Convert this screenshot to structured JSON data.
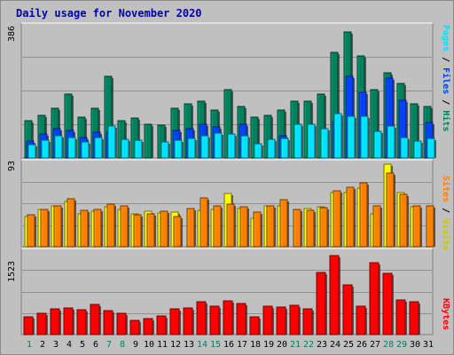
{
  "title": "Daily usage for November 2020",
  "colors": {
    "hits": "#00805c",
    "files": "#0040ff",
    "pages": "#00e0ff",
    "visits": "#ffff00",
    "sites": "#ff8000",
    "kbytes": "#ff0000",
    "weekday_label": "#006000",
    "weekend_label": "#00805c",
    "panel_bg": "#c0c0c0",
    "panel_border": "#808080"
  },
  "legend": {
    "top": {
      "pages": "Pages",
      "files": "Files",
      "hits": "Hits",
      "sep": " / "
    },
    "middle": {
      "sites": "Sites",
      "visits": "Visits",
      "sep": " / "
    },
    "bottom": {
      "kbytes": "KBytes"
    }
  },
  "chart_data": [
    {
      "type": "bar",
      "ymax_label": "386",
      "categories": [
        "1",
        "2",
        "3",
        "4",
        "5",
        "6",
        "7",
        "8",
        "9",
        "10",
        "11",
        "12",
        "13",
        "14",
        "15",
        "16",
        "17",
        "18",
        "19",
        "20",
        "21",
        "22",
        "23",
        "24",
        "25",
        "26",
        "27",
        "28",
        "29",
        "30",
        "31"
      ],
      "series": [
        {
          "name": "Hits",
          "values": [
            110,
            125,
            145,
            188,
            120,
            145,
            240,
            110,
            118,
            100,
            96,
            145,
            160,
            168,
            140,
            200,
            150,
            120,
            125,
            140,
            168,
            168,
            187,
            310,
            370,
            300,
            200,
            250,
            220,
            160,
            150
          ]
        },
        {
          "name": "Files",
          "values": [
            50,
            70,
            85,
            80,
            60,
            75,
            75,
            0,
            0,
            0,
            0,
            80,
            85,
            100,
            90,
            0,
            100,
            0,
            0,
            64,
            0,
            0,
            0,
            108,
            240,
            194,
            0,
            235,
            170,
            0,
            105
          ]
        },
        {
          "name": "Pages",
          "values": [
            40,
            53,
            66,
            60,
            48,
            60,
            93,
            56,
            53,
            0,
            46,
            53,
            58,
            65,
            73,
            70,
            65,
            42,
            55,
            58,
            98,
            98,
            86,
            130,
            122,
            123,
            78,
            95,
            60,
            50,
            58
          ]
        }
      ]
    },
    {
      "type": "bar",
      "ymax_label": "93",
      "categories": [
        "1",
        "2",
        "3",
        "4",
        "5",
        "6",
        "7",
        "8",
        "9",
        "10",
        "11",
        "12",
        "13",
        "14",
        "15",
        "16",
        "17",
        "18",
        "19",
        "20",
        "21",
        "22",
        "23",
        "24",
        "25",
        "26",
        "27",
        "28",
        "29",
        "30",
        "31"
      ],
      "series": [
        {
          "name": "Visits",
          "values": [
            34,
            42,
            46,
            50,
            37,
            40,
            45,
            42,
            37,
            40,
            38,
            39,
            0,
            41,
            42,
            59,
            43,
            32,
            46,
            46,
            0,
            43,
            45,
            60,
            60,
            65,
            37,
            92,
            60,
            45,
            0
          ]
        },
        {
          "name": "Sites",
          "values": [
            36,
            42,
            46,
            53,
            41,
            42,
            47,
            46,
            36,
            37,
            40,
            34,
            43,
            54,
            46,
            47,
            45,
            39,
            46,
            52,
            42,
            41,
            44,
            62,
            66,
            71,
            46,
            82,
            58,
            46,
            46
          ]
        }
      ]
    },
    {
      "type": "bar",
      "ymax_label": "1523",
      "categories": [
        "1",
        "2",
        "3",
        "4",
        "5",
        "6",
        "7",
        "8",
        "9",
        "10",
        "11",
        "12",
        "13",
        "14",
        "15",
        "16",
        "17",
        "18",
        "19",
        "20",
        "21",
        "22",
        "23",
        "24",
        "25",
        "26",
        "27",
        "28",
        "29",
        "30",
        "31"
      ],
      "series": [
        {
          "name": "KBytes",
          "values": [
            320,
            400,
            480,
            490,
            460,
            560,
            440,
            390,
            270,
            300,
            340,
            470,
            490,
            600,
            530,
            630,
            580,
            330,
            520,
            500,
            540,
            470,
            1150,
            1450,
            920,
            530,
            1330,
            1130,
            640,
            610,
            0
          ]
        }
      ]
    }
  ],
  "x_labels": [
    {
      "text": "1",
      "weekend": true
    },
    {
      "text": "2",
      "weekend": false
    },
    {
      "text": "3",
      "weekend": false
    },
    {
      "text": "4",
      "weekend": false
    },
    {
      "text": "5",
      "weekend": false
    },
    {
      "text": "6",
      "weekend": false
    },
    {
      "text": "7",
      "weekend": true
    },
    {
      "text": "8",
      "weekend": true
    },
    {
      "text": "9",
      "weekend": false
    },
    {
      "text": "10",
      "weekend": false
    },
    {
      "text": "11",
      "weekend": false
    },
    {
      "text": "12",
      "weekend": false
    },
    {
      "text": "13",
      "weekend": false
    },
    {
      "text": "14",
      "weekend": true
    },
    {
      "text": "15",
      "weekend": true
    },
    {
      "text": "16",
      "weekend": false
    },
    {
      "text": "17",
      "weekend": false
    },
    {
      "text": "18",
      "weekend": false
    },
    {
      "text": "19",
      "weekend": false
    },
    {
      "text": "20",
      "weekend": false
    },
    {
      "text": "21",
      "weekend": true
    },
    {
      "text": "22",
      "weekend": true
    },
    {
      "text": "23",
      "weekend": false
    },
    {
      "text": "24",
      "weekend": false
    },
    {
      "text": "25",
      "weekend": false
    },
    {
      "text": "26",
      "weekend": false
    },
    {
      "text": "27",
      "weekend": false
    },
    {
      "text": "28",
      "weekend": true
    },
    {
      "text": "29",
      "weekend": true
    },
    {
      "text": "30",
      "weekend": false
    },
    {
      "text": "31",
      "weekend": false
    }
  ]
}
